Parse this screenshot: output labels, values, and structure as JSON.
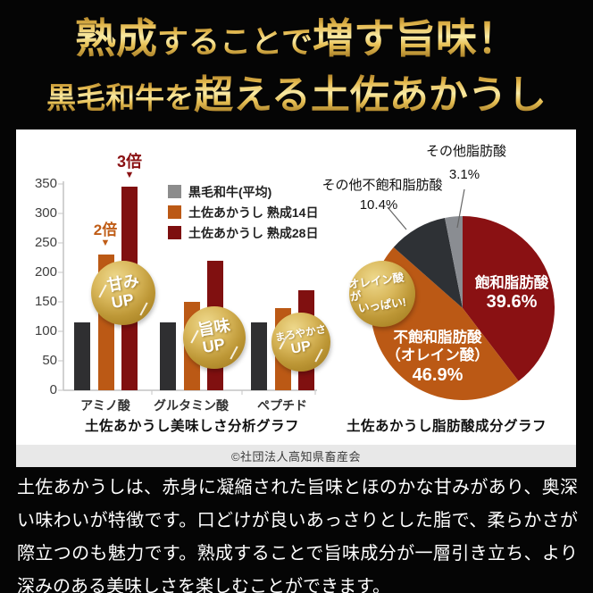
{
  "header": {
    "line1": [
      {
        "text": "熟成"
      },
      {
        "text": "することで"
      },
      {
        "text": "増す旨味！"
      }
    ],
    "line2": [
      {
        "text": "黒毛和牛を"
      },
      {
        "text": "超える土佐あかうし"
      }
    ]
  },
  "chart_data": [
    {
      "type": "bar",
      "title": "土佐あかうし美味しさ分析グラフ",
      "categories": [
        "アミノ酸",
        "グルタミン酸",
        "ペプチド"
      ],
      "series": [
        {
          "name": "黒毛和牛(平均)",
          "color": "#2f2f31",
          "legend_color": "#8c8c8c",
          "values": [
            115,
            115,
            115
          ]
        },
        {
          "name": "土佐あかうし 熟成14日",
          "color": "#bb5915",
          "legend_color": "#bb5915",
          "values": [
            230,
            150,
            140
          ]
        },
        {
          "name": "土佐あかうし 熟成28日",
          "color": "#801010",
          "legend_color": "#7d0f0f",
          "values": [
            345,
            220,
            170
          ]
        }
      ],
      "ylim": [
        0,
        350
      ],
      "yticks": [
        0,
        50,
        100,
        150,
        200,
        250,
        300,
        350
      ],
      "grid": false,
      "legend_position": "upper-right",
      "annotations": [
        {
          "text": "2倍",
          "arrow": "▼",
          "color": "#c05d17",
          "target": "アミノ酸 熟成14日"
        },
        {
          "text": "3倍",
          "arrow": "▼",
          "color": "#8a1113",
          "target": "アミノ酸 熟成28日"
        }
      ]
    },
    {
      "type": "pie",
      "title": "土佐あかうし脂肪酸成分グラフ",
      "slices": [
        {
          "label": "飽和脂肪酸",
          "pct": 39.6,
          "pct_label": "39.6%",
          "color": "#8a1113"
        },
        {
          "label": "不飽和脂肪酸（オレイン酸）",
          "label_lines": [
            "不飽和脂肪酸",
            "（オレイン酸）"
          ],
          "pct": 46.9,
          "pct_label": "46.9%",
          "color": "#bb5915"
        },
        {
          "label": "その他不飽和脂肪酸",
          "pct": 10.4,
          "pct_label": "10.4%",
          "color": "#2e3135"
        },
        {
          "label": "その他脂肪酸",
          "pct": 3.1,
          "pct_label": "3.1%",
          "color": "#8a8d92"
        }
      ]
    }
  ],
  "badges": [
    {
      "lines": [
        "甘み",
        "UP"
      ]
    },
    {
      "lines": [
        "旨味",
        "UP"
      ]
    },
    {
      "lines": [
        "まろやかさ",
        "UP"
      ]
    },
    {
      "lines": [
        "オレイン酸が",
        "いっぱい!"
      ]
    }
  ],
  "credit": "©社団法人高知県畜産会",
  "body_text": "土佐あかうしは、赤身に凝縮された旨味とほのかな甘みがあり、奥深い味わいが特徴です。口どけが良いあっさりとした脂で、柔らかさが際立つのも魅力です。熟成することで旨味成分が一層引き立ち、より深みのある美味しさを楽しむことができます。",
  "colors": {
    "background": "#050505",
    "panel": "#ffffff",
    "credit_strip": "#e8e8e8",
    "gold_light": "#f9eba6",
    "gold_dark": "#8f6414"
  }
}
